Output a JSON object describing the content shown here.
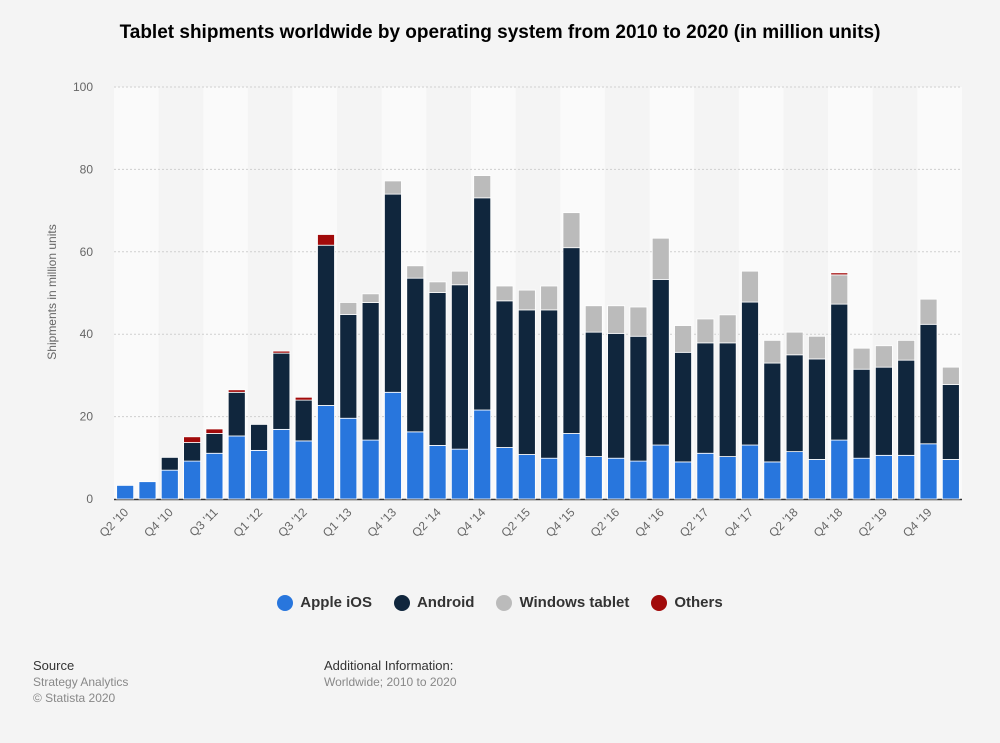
{
  "chart_data": {
    "type": "bar",
    "stacked": true,
    "title": "Tablet shipments worldwide by operating system from 2010 to 2020 (in million units)",
    "xlabel": "",
    "ylabel": "Shipments in million units",
    "ylim": [
      0,
      100
    ],
    "yticks": [
      0,
      20,
      40,
      60,
      80,
      100
    ],
    "grid": true,
    "legend_position": "bottom",
    "categories": [
      "Q2 '10",
      "Q3 '10",
      "Q4 '10",
      "Q2 '11",
      "Q3 '11",
      "Q4 '11",
      "Q1 '12",
      "Q2 '12",
      "Q3 '12",
      "Q4 '12",
      "Q1 '13",
      "Q2 '13",
      "Q4 '13",
      "Q1 '14",
      "Q2 '14",
      "Q3 '14",
      "Q4 '14",
      "Q1 '15",
      "Q2 '15",
      "Q3 '15",
      "Q4 '15",
      "Q1 '16",
      "Q2 '16",
      "Q3 '16",
      "Q4 '16",
      "Q1 '17",
      "Q2 '17",
      "Q3 '17",
      "Q4 '17",
      "Q1 '18",
      "Q2 '18",
      "Q3 '18",
      "Q4 '18",
      "Q1 '19",
      "Q2 '19",
      "Q3 '19",
      "Q4 '19",
      "Q1 '20"
    ],
    "shown_tick_labels": [
      "Q2 '10",
      "Q4 '10",
      "Q3 '11",
      "Q1 '12",
      "Q3 '12",
      "Q1 '13",
      "Q4 '13",
      "Q2 '14",
      "Q4 '14",
      "Q2 '15",
      "Q4 '15",
      "Q2 '16",
      "Q4 '16",
      "Q2 '17",
      "Q4 '17",
      "Q2 '18",
      "Q4 '18",
      "Q2 '19",
      "Q4 '19"
    ],
    "series": [
      {
        "name": "Apple iOS",
        "color": "#2876dd",
        "values": [
          3.3,
          4.2,
          7.0,
          9.2,
          11.1,
          15.3,
          11.8,
          16.9,
          14.1,
          22.7,
          19.6,
          14.3,
          25.9,
          16.3,
          13.0,
          12.1,
          21.6,
          12.5,
          10.8,
          9.9,
          15.9,
          10.3,
          9.9,
          9.2,
          13.1,
          9.0,
          11.1,
          10.3,
          13.1,
          9.0,
          11.5,
          9.6,
          14.3,
          9.9,
          10.6,
          10.6,
          13.4,
          9.6
        ]
      },
      {
        "name": "Android",
        "color": "#10263d",
        "values": [
          0,
          0,
          3.1,
          4.5,
          4.8,
          10.6,
          6.3,
          18.5,
          9.9,
          38.9,
          25.2,
          33.4,
          48.1,
          37.3,
          37.1,
          39.9,
          51.5,
          35.6,
          35.1,
          36.0,
          45.1,
          30.2,
          30.3,
          30.3,
          40.2,
          26.6,
          26.8,
          27.6,
          34.7,
          24.0,
          23.5,
          24.4,
          33.0,
          21.6,
          21.4,
          23.1,
          29.0,
          18.2
        ]
      },
      {
        "name": "Windows tablet",
        "color": "#bbbbbb",
        "values": [
          0,
          0,
          0,
          0,
          0,
          0,
          0,
          0,
          0,
          0,
          2.9,
          2.1,
          3.2,
          3.0,
          2.6,
          3.3,
          5.4,
          3.6,
          4.8,
          5.8,
          8.5,
          6.4,
          6.7,
          7.1,
          10.0,
          6.5,
          5.8,
          6.8,
          7.5,
          5.5,
          5.5,
          5.5,
          7.1,
          5.1,
          5.2,
          4.8,
          6.1,
          4.2
        ]
      },
      {
        "name": "Others",
        "color": "#a10a0a",
        "values": [
          0,
          0,
          0,
          1.4,
          1.1,
          0.6,
          0,
          0.5,
          0.7,
          2.6,
          0,
          0,
          0,
          0,
          0,
          0,
          0,
          0,
          0,
          0,
          0,
          0,
          0,
          0,
          0,
          0,
          0,
          0,
          0,
          0,
          0,
          0,
          0.5,
          0,
          0,
          0,
          0,
          0
        ]
      }
    ]
  },
  "footer": {
    "source_heading": "Source",
    "source": "Strategy Analytics",
    "copyright": "© Statista 2020",
    "info_heading": "Additional Information:",
    "info": "Worldwide; 2010 to 2020"
  }
}
